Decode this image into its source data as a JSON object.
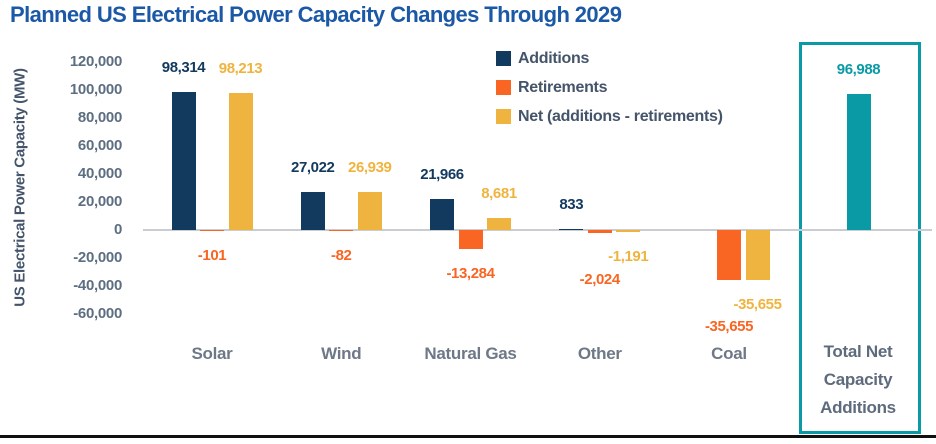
{
  "title": "Planned US Electrical Power Capacity Changes Through 2029",
  "chart_data": {
    "type": "bar",
    "title": "Planned US Electrical Power Capacity Changes Through 2029",
    "xlabel": "",
    "ylabel": "US Electrical Power Capacity (MW)",
    "ylim": [
      -60000,
      120000
    ],
    "ytick_step": 20000,
    "y_ticks": [
      "120,000",
      "100,000",
      "80,000",
      "60,000",
      "40,000",
      "20,000",
      "0",
      "-20,000",
      "-40,000",
      "-60,000"
    ],
    "grid": false,
    "legend_position": "top-center",
    "categories": [
      "Solar",
      "Wind",
      "Natural Gas",
      "Other",
      "Coal"
    ],
    "series": [
      {
        "name": "Additions",
        "color": "#12395e",
        "values": [
          98314,
          27022,
          21966,
          833,
          null
        ],
        "labels": [
          "98,314",
          "27,022",
          "21,966",
          "833",
          null
        ]
      },
      {
        "name": "Retirements",
        "color": "#f96522",
        "values": [
          -101,
          -82,
          -13284,
          -2024,
          -35655
        ],
        "labels": [
          "-101",
          "-82",
          "-13,284",
          "-2,024",
          "-35,655"
        ],
        "label_stagger": [
          1,
          1,
          1,
          2,
          2
        ]
      },
      {
        "name": "Net (additions - retirements)",
        "color": "#efb440",
        "values": [
          98213,
          26939,
          8681,
          -1191,
          -35655
        ],
        "labels": [
          "98,213",
          "26,939",
          "8,681",
          "-1,191",
          "-35,655"
        ],
        "label_stagger": [
          1,
          1,
          1,
          1,
          1
        ]
      }
    ],
    "total": {
      "label": "Total Net Capacity Additions",
      "value": 96988,
      "value_label": "96,988",
      "color": "#0a9aa6"
    }
  },
  "colors": {
    "title": "#1b58a6",
    "axis_text": "#5d6e82",
    "category_text": "#6e7887",
    "legend_text": "#44546a",
    "zero_line": "#c9cdd1",
    "total_box_border": "#0a9aa6"
  }
}
